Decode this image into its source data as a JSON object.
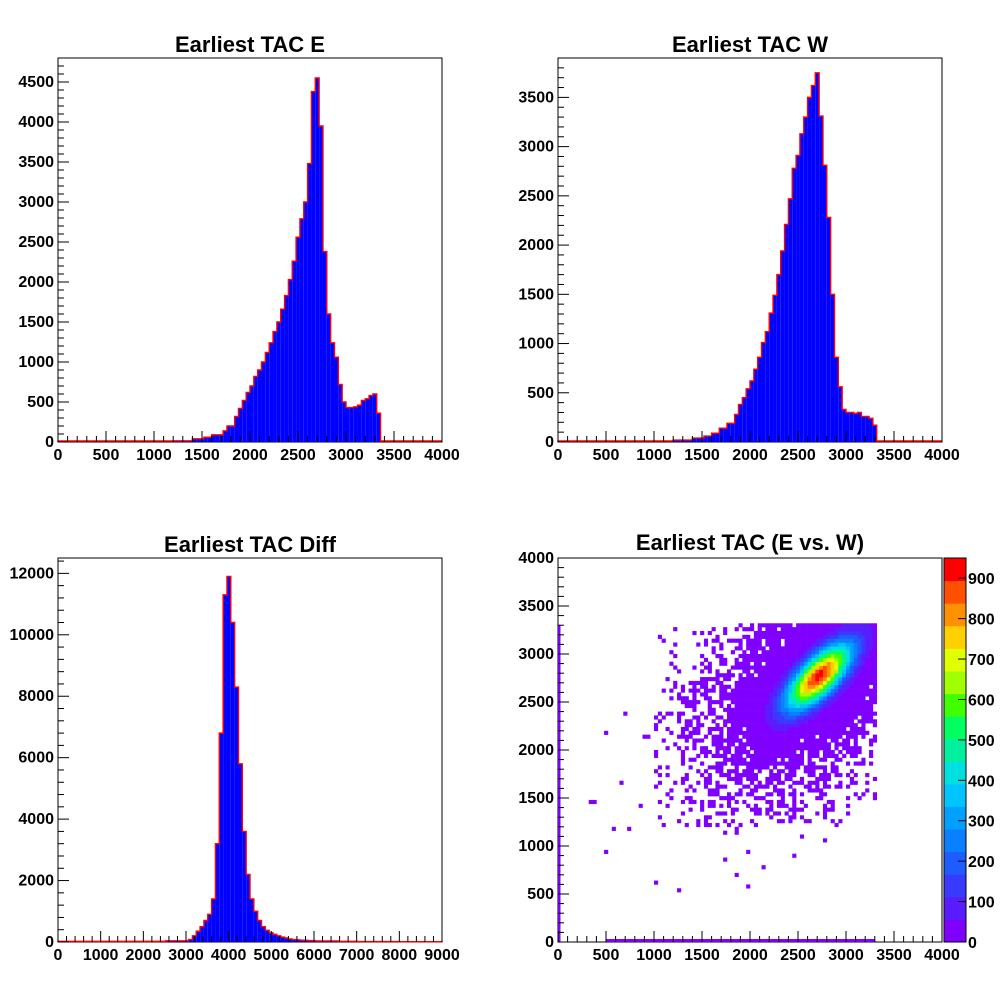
{
  "colors": {
    "fill": "#0000ff",
    "outline": "#ff0000",
    "axis": "#000000",
    "palette": [
      "#7f00ff",
      "#5a1cff",
      "#3a3aff",
      "#1f5cff",
      "#0a7fff",
      "#00a0ff",
      "#00c4ff",
      "#00e0e0",
      "#00f0a0",
      "#00ff60",
      "#40ff00",
      "#a0ff00",
      "#e0ff00",
      "#ffd000",
      "#ff9000",
      "#ff5000",
      "#ff0000"
    ]
  },
  "footer": {
    "text": ""
  },
  "chart_data": [
    {
      "type": "histogram",
      "title": "Earliest TAC E",
      "xlabel": "",
      "ylabel": "",
      "xlim": [
        0,
        4000
      ],
      "ylim": [
        0,
        4800
      ],
      "xticks": [
        0,
        500,
        1000,
        1500,
        2000,
        2500,
        3000,
        3500,
        4000
      ],
      "yticks": [
        0,
        500,
        1000,
        1500,
        2000,
        2500,
        3000,
        3500,
        4000,
        4500
      ],
      "bin_width": 40,
      "fill_range": [
        0,
        3360
      ],
      "bins": [
        [
          0,
          0
        ],
        [
          1200,
          15
        ],
        [
          1400,
          40
        ],
        [
          1500,
          60
        ],
        [
          1600,
          90
        ],
        [
          1700,
          140
        ],
        [
          1760,
          200
        ],
        [
          1840,
          320
        ],
        [
          1880,
          420
        ],
        [
          1920,
          520
        ],
        [
          1960,
          620
        ],
        [
          2000,
          700
        ],
        [
          2040,
          820
        ],
        [
          2080,
          900
        ],
        [
          2120,
          1000
        ],
        [
          2160,
          1120
        ],
        [
          2200,
          1240
        ],
        [
          2240,
          1380
        ],
        [
          2280,
          1500
        ],
        [
          2320,
          1660
        ],
        [
          2360,
          1830
        ],
        [
          2400,
          2030
        ],
        [
          2440,
          2260
        ],
        [
          2480,
          2560
        ],
        [
          2520,
          2790
        ],
        [
          2560,
          3000
        ],
        [
          2600,
          3480
        ],
        [
          2640,
          4380
        ],
        [
          2680,
          4550
        ],
        [
          2720,
          3950
        ],
        [
          2760,
          2380
        ],
        [
          2800,
          1600
        ],
        [
          2840,
          1240
        ],
        [
          2880,
          1060
        ],
        [
          2920,
          720
        ],
        [
          2960,
          500
        ],
        [
          3000,
          430
        ],
        [
          3040,
          430
        ],
        [
          3080,
          440
        ],
        [
          3120,
          460
        ],
        [
          3160,
          520
        ],
        [
          3200,
          540
        ],
        [
          3240,
          580
        ],
        [
          3280,
          600
        ],
        [
          3320,
          360
        ],
        [
          3360,
          0
        ]
      ]
    },
    {
      "type": "histogram",
      "title": "Earliest TAC W",
      "xlabel": "",
      "ylabel": "",
      "xlim": [
        0,
        4000
      ],
      "ylim": [
        0,
        3900
      ],
      "xticks": [
        0,
        500,
        1000,
        1500,
        2000,
        2500,
        3000,
        3500,
        4000
      ],
      "yticks": [
        0,
        500,
        1000,
        1500,
        2000,
        2500,
        3000,
        3500
      ],
      "bin_width": 40,
      "fill_range": [
        0,
        3320
      ],
      "bins": [
        [
          0,
          0
        ],
        [
          1200,
          20
        ],
        [
          1400,
          40
        ],
        [
          1500,
          60
        ],
        [
          1600,
          90
        ],
        [
          1680,
          140
        ],
        [
          1760,
          190
        ],
        [
          1840,
          280
        ],
        [
          1880,
          380
        ],
        [
          1920,
          450
        ],
        [
          1960,
          540
        ],
        [
          2000,
          620
        ],
        [
          2040,
          740
        ],
        [
          2080,
          860
        ],
        [
          2120,
          1010
        ],
        [
          2160,
          1120
        ],
        [
          2200,
          1310
        ],
        [
          2240,
          1490
        ],
        [
          2280,
          1700
        ],
        [
          2320,
          1940
        ],
        [
          2360,
          2210
        ],
        [
          2400,
          2470
        ],
        [
          2440,
          2780
        ],
        [
          2480,
          2910
        ],
        [
          2520,
          3130
        ],
        [
          2560,
          3300
        ],
        [
          2600,
          3500
        ],
        [
          2640,
          3620
        ],
        [
          2680,
          3750
        ],
        [
          2720,
          3310
        ],
        [
          2760,
          2810
        ],
        [
          2800,
          2280
        ],
        [
          2840,
          1500
        ],
        [
          2880,
          860
        ],
        [
          2920,
          560
        ],
        [
          2960,
          330
        ],
        [
          3000,
          300
        ],
        [
          3040,
          300
        ],
        [
          3080,
          290
        ],
        [
          3120,
          300
        ],
        [
          3160,
          260
        ],
        [
          3200,
          260
        ],
        [
          3240,
          240
        ],
        [
          3280,
          170
        ],
        [
          3320,
          0
        ]
      ]
    },
    {
      "type": "histogram",
      "title": "Earliest TAC Diff",
      "xlabel": "",
      "ylabel": "",
      "xlim": [
        0,
        9000
      ],
      "ylim": [
        0,
        12500
      ],
      "xticks": [
        0,
        1000,
        2000,
        3000,
        4000,
        5000,
        6000,
        7000,
        8000,
        9000
      ],
      "yticks": [
        0,
        2000,
        4000,
        6000,
        8000,
        10000,
        12000
      ],
      "bin_width": 90,
      "fill_range": [
        0,
        9000
      ],
      "bins": [
        [
          0,
          20
        ],
        [
          2500,
          40
        ],
        [
          3060,
          80
        ],
        [
          3150,
          200
        ],
        [
          3240,
          350
        ],
        [
          3330,
          500
        ],
        [
          3420,
          700
        ],
        [
          3510,
          900
        ],
        [
          3600,
          1400
        ],
        [
          3690,
          3200
        ],
        [
          3780,
          6800
        ],
        [
          3870,
          11300
        ],
        [
          3960,
          11900
        ],
        [
          4050,
          10400
        ],
        [
          4140,
          8300
        ],
        [
          4230,
          5800
        ],
        [
          4320,
          3600
        ],
        [
          4410,
          2200
        ],
        [
          4500,
          1400
        ],
        [
          4590,
          1000
        ],
        [
          4680,
          700
        ],
        [
          4770,
          500
        ],
        [
          4860,
          380
        ],
        [
          4950,
          300
        ],
        [
          5040,
          250
        ],
        [
          5130,
          200
        ],
        [
          5220,
          160
        ],
        [
          5310,
          130
        ],
        [
          5400,
          100
        ],
        [
          5490,
          80
        ],
        [
          5580,
          70
        ],
        [
          5670,
          60
        ],
        [
          5800,
          45
        ],
        [
          6000,
          35
        ],
        [
          6500,
          20
        ],
        [
          7000,
          15
        ],
        [
          8000,
          10
        ]
      ]
    },
    {
      "type": "heatmap",
      "title": "Earliest TAC (E vs. W)",
      "xlabel": "",
      "ylabel": "",
      "xlim": [
        0,
        4000
      ],
      "ylim": [
        0,
        4000
      ],
      "xticks": [
        0,
        500,
        1000,
        1500,
        2000,
        2500,
        3000,
        3500,
        4000
      ],
      "yticks": [
        0,
        500,
        1000,
        1500,
        2000,
        2500,
        3000,
        3500,
        4000
      ],
      "zlim": [
        0,
        950
      ],
      "colorbar_ticks": [
        0,
        100,
        200,
        300,
        400,
        500,
        600,
        700,
        800,
        900
      ],
      "bin_size": 40,
      "peak": {
        "x": 2700,
        "y": 2750,
        "z": 920
      },
      "core_region": {
        "x": [
          1000,
          3320
        ],
        "y": [
          1200,
          3320
        ]
      },
      "strips": [
        {
          "axis": "y",
          "at": 0,
          "range": [
            0,
            3300
          ]
        },
        {
          "axis": "x",
          "at": 0,
          "range": [
            500,
            3300
          ]
        }
      ]
    }
  ]
}
